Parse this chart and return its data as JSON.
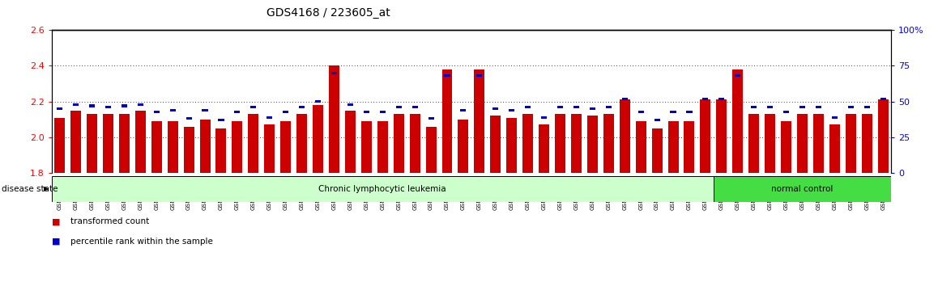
{
  "title": "GDS4168 / 223605_at",
  "samples": [
    "GSM559433",
    "GSM559434",
    "GSM559436",
    "GSM559437",
    "GSM559438",
    "GSM559440",
    "GSM559441",
    "GSM559442",
    "GSM559444",
    "GSM559445",
    "GSM559446",
    "GSM559448",
    "GSM559450",
    "GSM559451",
    "GSM559452",
    "GSM559454",
    "GSM559455",
    "GSM559456",
    "GSM559457",
    "GSM559458",
    "GSM559459",
    "GSM559460",
    "GSM559461",
    "GSM559462",
    "GSM559463",
    "GSM559464",
    "GSM559465",
    "GSM559467",
    "GSM559468",
    "GSM559469",
    "GSM559470",
    "GSM559471",
    "GSM559472",
    "GSM559473",
    "GSM559475",
    "GSM559477",
    "GSM559478",
    "GSM559479",
    "GSM559480",
    "GSM559481",
    "GSM559482",
    "GSM559435",
    "GSM559439",
    "GSM559443",
    "GSM559447",
    "GSM559449",
    "GSM559453",
    "GSM559466",
    "GSM559474",
    "GSM559476",
    "GSM559483",
    "GSM559484"
  ],
  "red_values": [
    2.11,
    2.15,
    2.13,
    2.13,
    2.13,
    2.15,
    2.09,
    2.09,
    2.06,
    2.1,
    2.05,
    2.09,
    2.13,
    2.07,
    2.09,
    2.13,
    2.18,
    2.4,
    2.15,
    2.09,
    2.09,
    2.13,
    2.13,
    2.06,
    2.38,
    2.1,
    2.38,
    2.12,
    2.11,
    2.13,
    2.07,
    2.13,
    2.13,
    2.12,
    2.13,
    2.21,
    2.09,
    2.05,
    2.09,
    2.09,
    2.21,
    2.21,
    2.38,
    2.13,
    2.13,
    2.09,
    2.13,
    2.13,
    2.07,
    2.13,
    2.13,
    2.21
  ],
  "percentile_values": [
    45,
    48,
    47,
    46,
    47,
    48,
    43,
    44,
    38,
    44,
    37,
    43,
    46,
    39,
    43,
    46,
    50,
    70,
    48,
    43,
    43,
    46,
    46,
    38,
    68,
    44,
    68,
    45,
    44,
    46,
    39,
    46,
    46,
    45,
    46,
    52,
    43,
    37,
    43,
    43,
    52,
    52,
    68,
    46,
    46,
    43,
    46,
    46,
    39,
    46,
    46,
    52
  ],
  "baseline": 1.8,
  "ylim_left": [
    1.8,
    2.6
  ],
  "ylim_right": [
    0,
    100
  ],
  "yticks_left": [
    1.8,
    2.0,
    2.2,
    2.4,
    2.6
  ],
  "yticks_right": [
    0,
    25,
    50,
    75,
    100
  ],
  "bar_color": "#cc0000",
  "blue_color": "#0000cc",
  "bg_color": "#ffffff",
  "cll_color": "#ccffcc",
  "nc_color": "#44dd44",
  "cll_label": "Chronic lymphocytic leukemia",
  "nc_label": "normal control",
  "disease_state_label": "disease state",
  "legend_red": "transformed count",
  "legend_blue": "percentile rank within the sample",
  "n_cll": 41,
  "n_nc": 11
}
